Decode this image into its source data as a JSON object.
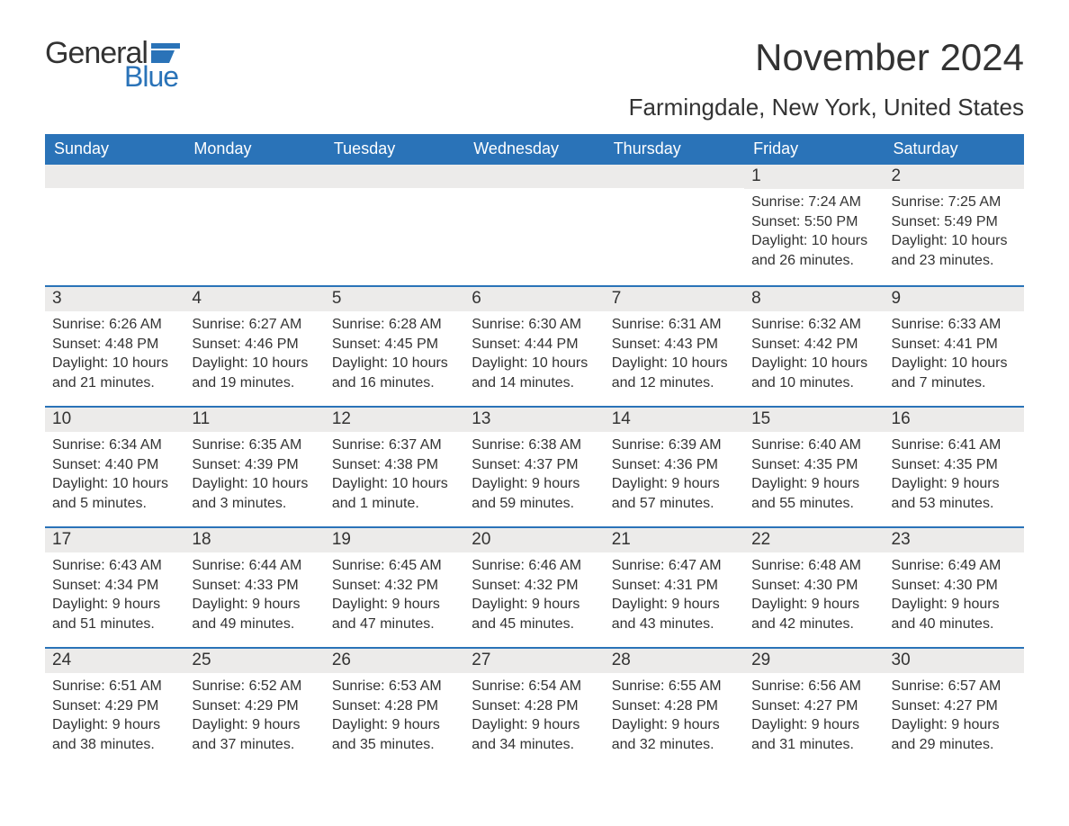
{
  "logo": {
    "word1": "General",
    "word2": "Blue",
    "text_color": "#333333",
    "accent_color": "#2a73b8"
  },
  "header": {
    "month_title": "November 2024",
    "location": "Farmingdale, New York, United States"
  },
  "styling": {
    "header_bar_bg": "#2a73b8",
    "header_bar_text": "#ffffff",
    "daynum_bg": "#ecebea",
    "week_divider_color": "#2a73b8",
    "body_text_color": "#333333",
    "page_bg": "#ffffff",
    "weekday_fontsize": 18,
    "daynum_fontsize": 19,
    "body_fontsize": 16,
    "title_fontsize": 42,
    "location_fontsize": 26
  },
  "weekdays": [
    "Sunday",
    "Monday",
    "Tuesday",
    "Wednesday",
    "Thursday",
    "Friday",
    "Saturday"
  ],
  "weeks": [
    [
      {
        "day": "",
        "sunrise": "",
        "sunset": "",
        "daylight": ""
      },
      {
        "day": "",
        "sunrise": "",
        "sunset": "",
        "daylight": ""
      },
      {
        "day": "",
        "sunrise": "",
        "sunset": "",
        "daylight": ""
      },
      {
        "day": "",
        "sunrise": "",
        "sunset": "",
        "daylight": ""
      },
      {
        "day": "",
        "sunrise": "",
        "sunset": "",
        "daylight": ""
      },
      {
        "day": "1",
        "sunrise": "Sunrise: 7:24 AM",
        "sunset": "Sunset: 5:50 PM",
        "daylight": "Daylight: 10 hours and 26 minutes."
      },
      {
        "day": "2",
        "sunrise": "Sunrise: 7:25 AM",
        "sunset": "Sunset: 5:49 PM",
        "daylight": "Daylight: 10 hours and 23 minutes."
      }
    ],
    [
      {
        "day": "3",
        "sunrise": "Sunrise: 6:26 AM",
        "sunset": "Sunset: 4:48 PM",
        "daylight": "Daylight: 10 hours and 21 minutes."
      },
      {
        "day": "4",
        "sunrise": "Sunrise: 6:27 AM",
        "sunset": "Sunset: 4:46 PM",
        "daylight": "Daylight: 10 hours and 19 minutes."
      },
      {
        "day": "5",
        "sunrise": "Sunrise: 6:28 AM",
        "sunset": "Sunset: 4:45 PM",
        "daylight": "Daylight: 10 hours and 16 minutes."
      },
      {
        "day": "6",
        "sunrise": "Sunrise: 6:30 AM",
        "sunset": "Sunset: 4:44 PM",
        "daylight": "Daylight: 10 hours and 14 minutes."
      },
      {
        "day": "7",
        "sunrise": "Sunrise: 6:31 AM",
        "sunset": "Sunset: 4:43 PM",
        "daylight": "Daylight: 10 hours and 12 minutes."
      },
      {
        "day": "8",
        "sunrise": "Sunrise: 6:32 AM",
        "sunset": "Sunset: 4:42 PM",
        "daylight": "Daylight: 10 hours and 10 minutes."
      },
      {
        "day": "9",
        "sunrise": "Sunrise: 6:33 AM",
        "sunset": "Sunset: 4:41 PM",
        "daylight": "Daylight: 10 hours and 7 minutes."
      }
    ],
    [
      {
        "day": "10",
        "sunrise": "Sunrise: 6:34 AM",
        "sunset": "Sunset: 4:40 PM",
        "daylight": "Daylight: 10 hours and 5 minutes."
      },
      {
        "day": "11",
        "sunrise": "Sunrise: 6:35 AM",
        "sunset": "Sunset: 4:39 PM",
        "daylight": "Daylight: 10 hours and 3 minutes."
      },
      {
        "day": "12",
        "sunrise": "Sunrise: 6:37 AM",
        "sunset": "Sunset: 4:38 PM",
        "daylight": "Daylight: 10 hours and 1 minute."
      },
      {
        "day": "13",
        "sunrise": "Sunrise: 6:38 AM",
        "sunset": "Sunset: 4:37 PM",
        "daylight": "Daylight: 9 hours and 59 minutes."
      },
      {
        "day": "14",
        "sunrise": "Sunrise: 6:39 AM",
        "sunset": "Sunset: 4:36 PM",
        "daylight": "Daylight: 9 hours and 57 minutes."
      },
      {
        "day": "15",
        "sunrise": "Sunrise: 6:40 AM",
        "sunset": "Sunset: 4:35 PM",
        "daylight": "Daylight: 9 hours and 55 minutes."
      },
      {
        "day": "16",
        "sunrise": "Sunrise: 6:41 AM",
        "sunset": "Sunset: 4:35 PM",
        "daylight": "Daylight: 9 hours and 53 minutes."
      }
    ],
    [
      {
        "day": "17",
        "sunrise": "Sunrise: 6:43 AM",
        "sunset": "Sunset: 4:34 PM",
        "daylight": "Daylight: 9 hours and 51 minutes."
      },
      {
        "day": "18",
        "sunrise": "Sunrise: 6:44 AM",
        "sunset": "Sunset: 4:33 PM",
        "daylight": "Daylight: 9 hours and 49 minutes."
      },
      {
        "day": "19",
        "sunrise": "Sunrise: 6:45 AM",
        "sunset": "Sunset: 4:32 PM",
        "daylight": "Daylight: 9 hours and 47 minutes."
      },
      {
        "day": "20",
        "sunrise": "Sunrise: 6:46 AM",
        "sunset": "Sunset: 4:32 PM",
        "daylight": "Daylight: 9 hours and 45 minutes."
      },
      {
        "day": "21",
        "sunrise": "Sunrise: 6:47 AM",
        "sunset": "Sunset: 4:31 PM",
        "daylight": "Daylight: 9 hours and 43 minutes."
      },
      {
        "day": "22",
        "sunrise": "Sunrise: 6:48 AM",
        "sunset": "Sunset: 4:30 PM",
        "daylight": "Daylight: 9 hours and 42 minutes."
      },
      {
        "day": "23",
        "sunrise": "Sunrise: 6:49 AM",
        "sunset": "Sunset: 4:30 PM",
        "daylight": "Daylight: 9 hours and 40 minutes."
      }
    ],
    [
      {
        "day": "24",
        "sunrise": "Sunrise: 6:51 AM",
        "sunset": "Sunset: 4:29 PM",
        "daylight": "Daylight: 9 hours and 38 minutes."
      },
      {
        "day": "25",
        "sunrise": "Sunrise: 6:52 AM",
        "sunset": "Sunset: 4:29 PM",
        "daylight": "Daylight: 9 hours and 37 minutes."
      },
      {
        "day": "26",
        "sunrise": "Sunrise: 6:53 AM",
        "sunset": "Sunset: 4:28 PM",
        "daylight": "Daylight: 9 hours and 35 minutes."
      },
      {
        "day": "27",
        "sunrise": "Sunrise: 6:54 AM",
        "sunset": "Sunset: 4:28 PM",
        "daylight": "Daylight: 9 hours and 34 minutes."
      },
      {
        "day": "28",
        "sunrise": "Sunrise: 6:55 AM",
        "sunset": "Sunset: 4:28 PM",
        "daylight": "Daylight: 9 hours and 32 minutes."
      },
      {
        "day": "29",
        "sunrise": "Sunrise: 6:56 AM",
        "sunset": "Sunset: 4:27 PM",
        "daylight": "Daylight: 9 hours and 31 minutes."
      },
      {
        "day": "30",
        "sunrise": "Sunrise: 6:57 AM",
        "sunset": "Sunset: 4:27 PM",
        "daylight": "Daylight: 9 hours and 29 minutes."
      }
    ]
  ]
}
